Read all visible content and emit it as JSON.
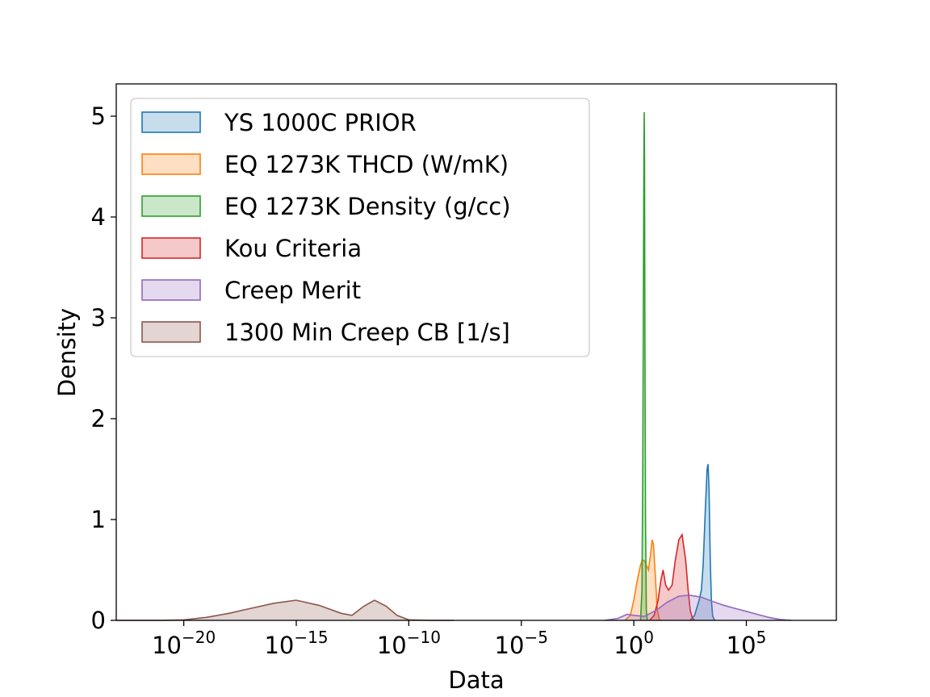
{
  "chart_data": {
    "type": "area",
    "title": "",
    "xlabel": "Data",
    "ylabel": "Density",
    "x_scale": "log",
    "xlim": [
      1e-23,
      1000000000.0
    ],
    "ylim": [
      0,
      5.32
    ],
    "grid": false,
    "legend_position": "top-left",
    "x_ticks": [
      {
        "value": 1e-20,
        "base": "10",
        "exp": "−20"
      },
      {
        "value": 1e-15,
        "base": "10",
        "exp": "−15"
      },
      {
        "value": 1e-10,
        "base": "10",
        "exp": "−10"
      },
      {
        "value": 1e-05,
        "base": "10",
        "exp": "−5"
      },
      {
        "value": 1,
        "base": "10",
        "exp": "0"
      },
      {
        "value": 100000.0,
        "base": "10",
        "exp": "5"
      }
    ],
    "y_ticks": [
      0,
      1,
      2,
      3,
      4,
      5
    ],
    "series": [
      {
        "name": "YS 1000C PRIOR",
        "color": "#1f77b4",
        "x": [
          316,
          500,
          800,
          1000,
          1200,
          1500,
          1800,
          2000,
          2200,
          2500,
          2800,
          3200,
          4000
        ],
        "y": [
          0,
          0.05,
          0.2,
          0.3,
          0.55,
          1.1,
          1.5,
          1.55,
          1.3,
          0.6,
          0.2,
          0.04,
          0
        ]
      },
      {
        "name": "EQ 1273K THCD (W/mK)",
        "color": "#ff7f0e",
        "x": [
          0.4,
          0.7,
          1.0,
          1.3,
          1.6,
          2.0,
          2.4,
          3.0,
          3.6,
          4.5,
          5.5,
          6.5,
          7.5,
          9.0,
          11,
          14
        ],
        "y": [
          0,
          0.05,
          0.2,
          0.35,
          0.45,
          0.55,
          0.6,
          0.59,
          0.55,
          0.5,
          0.65,
          0.8,
          0.75,
          0.45,
          0.1,
          0
        ]
      },
      {
        "name": "EQ 1273K Density (g/cc)",
        "color": "#2ca02c",
        "x": [
          2.0,
          2.3,
          2.5,
          2.7,
          2.8,
          2.9,
          3.0,
          3.1,
          3.3,
          3.6,
          4.0
        ],
        "y": [
          0,
          0.3,
          1.5,
          3.5,
          4.6,
          5.04,
          4.6,
          3.0,
          1.0,
          0.1,
          0
        ]
      },
      {
        "name": "Kou Criteria",
        "color": "#d62728",
        "x": [
          5,
          8,
          12,
          16,
          20,
          26,
          35,
          50,
          70,
          100,
          140,
          200,
          260,
          320,
          400,
          500
        ],
        "y": [
          0,
          0.05,
          0.2,
          0.4,
          0.5,
          0.35,
          0.3,
          0.35,
          0.6,
          0.8,
          0.85,
          0.6,
          0.3,
          0.1,
          0.02,
          0
        ]
      },
      {
        "name": "Creep Merit",
        "color": "#9467bd",
        "x": [
          0.05,
          0.2,
          0.5,
          1,
          3,
          10,
          30,
          100,
          300,
          1000,
          3000,
          10000,
          30000,
          100000,
          300000,
          1000000,
          3000000,
          10000000
        ],
        "y": [
          0,
          0.02,
          0.06,
          0.05,
          0.04,
          0.1,
          0.18,
          0.24,
          0.25,
          0.23,
          0.19,
          0.15,
          0.12,
          0.09,
          0.06,
          0.03,
          0.01,
          0
        ]
      },
      {
        "name": "1300 Min Creep CB [1/s]",
        "color": "#8c564b",
        "x": [
          1e-23,
          1e-21,
          1e-20,
          1e-19,
          1e-18,
          1e-17,
          1e-16,
          1e-15,
          1e-14,
          1e-13,
          3e-13,
          1e-12,
          3e-12,
          1e-11,
          3e-11,
          1e-10,
          1e-09,
          1e-08
        ],
        "y": [
          0,
          0.0,
          0.005,
          0.03,
          0.07,
          0.12,
          0.17,
          0.2,
          0.15,
          0.07,
          0.05,
          0.14,
          0.2,
          0.14,
          0.05,
          0.005,
          0,
          0
        ]
      }
    ]
  }
}
